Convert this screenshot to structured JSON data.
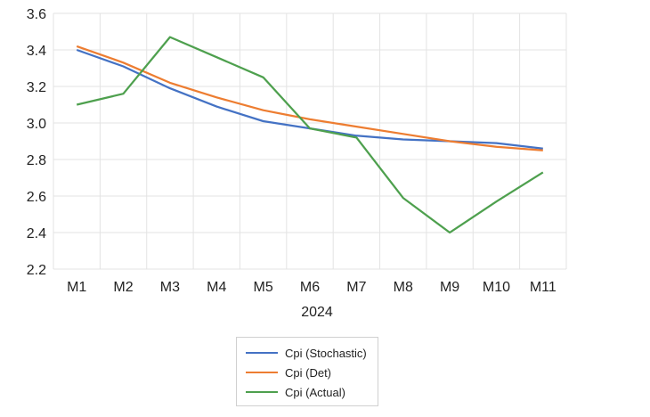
{
  "chart_data": {
    "type": "line",
    "xlabel": "2024",
    "ylabel": "",
    "categories": [
      "M1",
      "M2",
      "M3",
      "M4",
      "M5",
      "M6",
      "M7",
      "M8",
      "M9",
      "M10",
      "M11"
    ],
    "ylim": [
      2.2,
      3.6
    ],
    "yticks": [
      "2.2",
      "2.4",
      "2.6",
      "2.8",
      "3.0",
      "3.2",
      "3.4",
      "3.6"
    ],
    "grid": true,
    "legend_position": "bottom",
    "series": [
      {
        "name": "Cpi (Stochastic)",
        "color": "#4472C4",
        "values": [
          3.4,
          3.31,
          3.19,
          3.09,
          3.01,
          2.97,
          2.93,
          2.91,
          2.9,
          2.89,
          2.86
        ]
      },
      {
        "name": "Cpi (Det)",
        "color": "#ED7D31",
        "values": [
          3.42,
          3.33,
          3.22,
          3.14,
          3.07,
          3.02,
          2.98,
          2.94,
          2.9,
          2.87,
          2.85
        ]
      },
      {
        "name": "Cpi (Actual)",
        "color": "#4EA04E",
        "values": [
          3.1,
          3.16,
          3.47,
          3.36,
          3.25,
          2.97,
          2.92,
          2.59,
          2.4,
          2.57,
          2.73
        ]
      }
    ]
  }
}
